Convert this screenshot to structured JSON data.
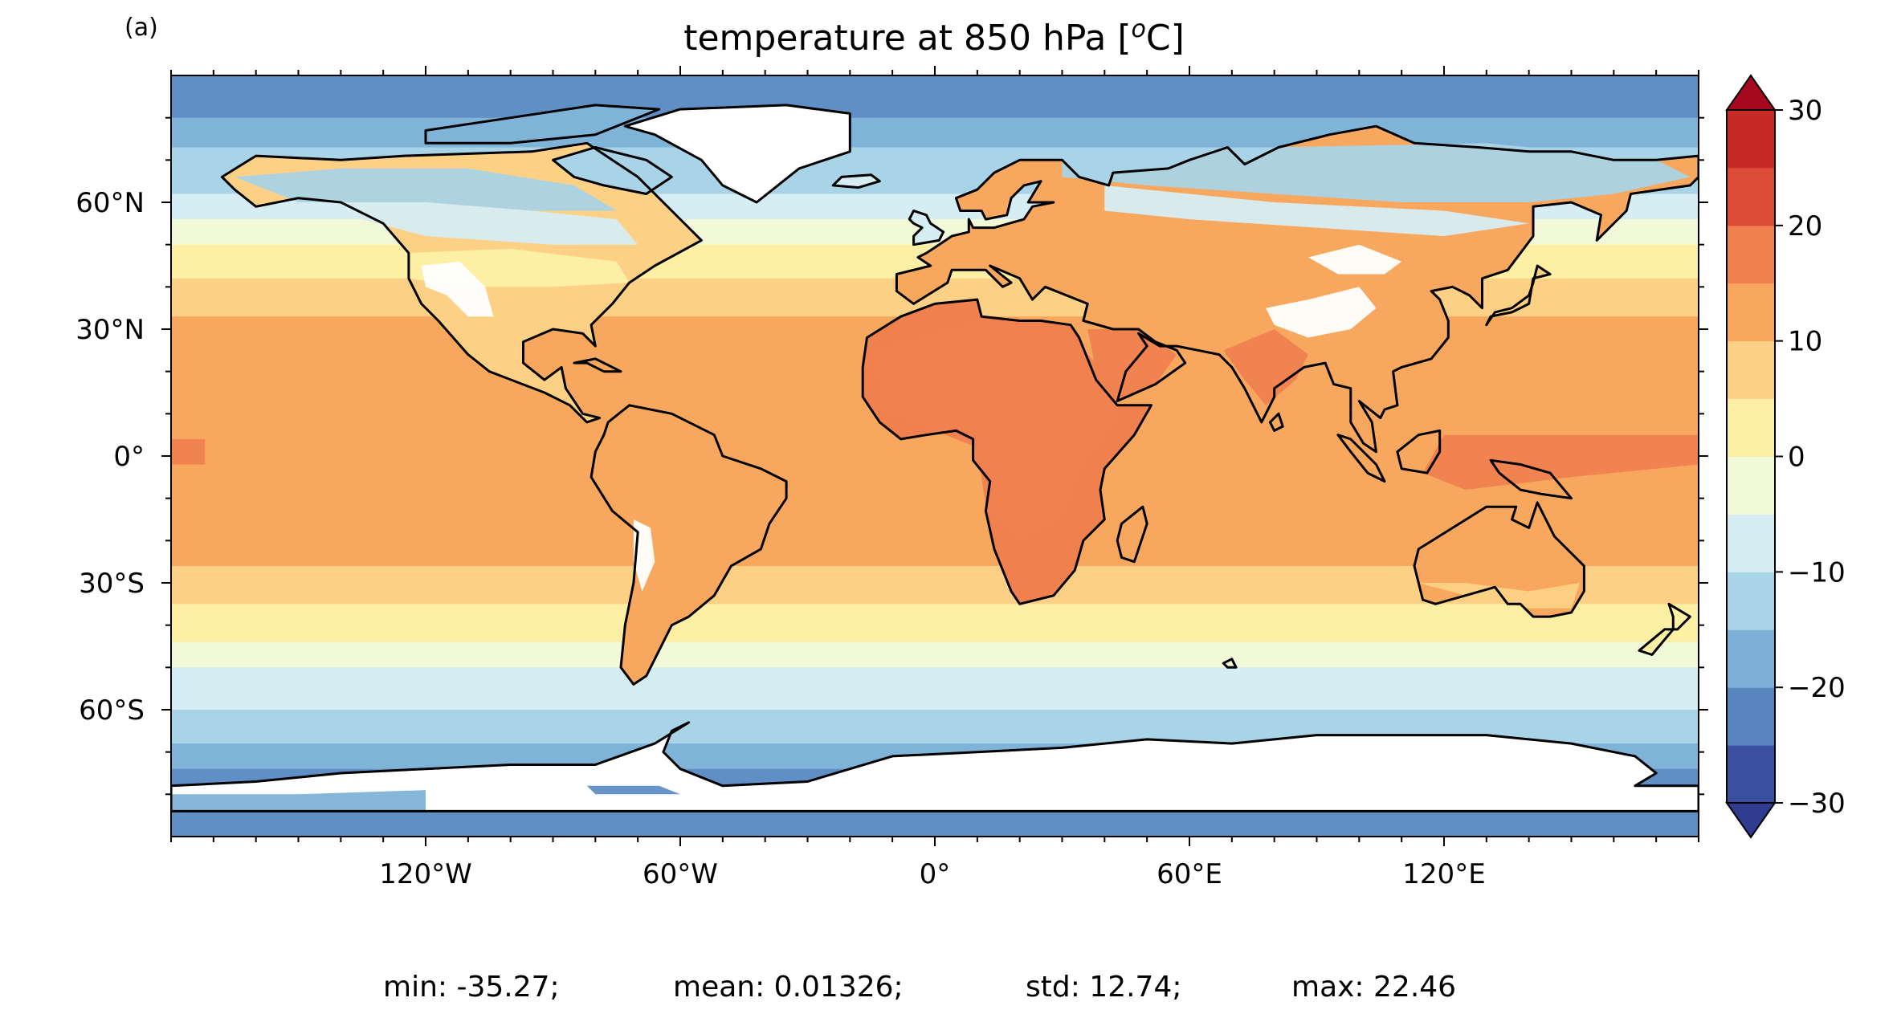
{
  "panel_label": "(a)",
  "title_main": "temperature at 850 hPa [",
  "title_sup": "o",
  "title_end": "C]",
  "stats": {
    "min": "min: -35.27;",
    "mean": "mean: 0.01326;",
    "std": "std: 12.74;",
    "max": "max: 22.46"
  },
  "chart_data": {
    "type": "heatmap",
    "projection": "PlateCarree",
    "title": "temperature at 850 hPa [oC]",
    "x_ticks": [
      {
        "lon": -120,
        "label": "120°W"
      },
      {
        "lon": -60,
        "label": "60°W"
      },
      {
        "lon": 0,
        "label": "0°"
      },
      {
        "lon": 60,
        "label": "60°E"
      },
      {
        "lon": 120,
        "label": "120°E"
      }
    ],
    "y_ticks": [
      {
        "lat": 60,
        "label": "60°N"
      },
      {
        "lat": 30,
        "label": "30°N"
      },
      {
        "lat": 0,
        "label": "0°"
      },
      {
        "lat": -30,
        "label": "30°S"
      },
      {
        "lat": -60,
        "label": "60°S"
      }
    ],
    "xlim": [
      -180,
      180
    ],
    "ylim": [
      -90,
      90
    ],
    "colorbar": {
      "levels": [
        -30,
        -25,
        -20,
        -15,
        -10,
        -5,
        0,
        5,
        10,
        15,
        20,
        25,
        30
      ],
      "colors": [
        "#3b4fa0",
        "#5a86c0",
        "#7fb0d7",
        "#a9d3e6",
        "#d6edf3",
        "#f2f9d8",
        "#fdf0a5",
        "#fdd185",
        "#f8a85e",
        "#f0814f",
        "#dc4b36",
        "#c62a27"
      ],
      "extend_low": "#2f3c8f",
      "extend_high": "#a6081f",
      "tick_values": [
        30,
        20,
        10,
        0,
        -10,
        -20,
        -30
      ],
      "tick_labels": [
        "30",
        "20",
        "10",
        "0",
        "−10",
        "−20",
        "−30"
      ]
    },
    "background_colors": {
      "zone_polar_band": "#5f8fc4",
      "zone_subpolar": "#7fb3d8",
      "zone_cold": "#a9d3e6",
      "zone_cool": "#d6edf3",
      "zone_mild": "#f2f9d8",
      "zone_temperate": "#fdf0a5",
      "zone_warm": "#fdd185",
      "zone_hot": "#f8a85e",
      "zone_veryhot": "#f0814f",
      "no_data": "#ffffff"
    },
    "stats": {
      "min": -35.27,
      "mean": 0.01326,
      "std": 12.74,
      "max": 22.46
    }
  }
}
